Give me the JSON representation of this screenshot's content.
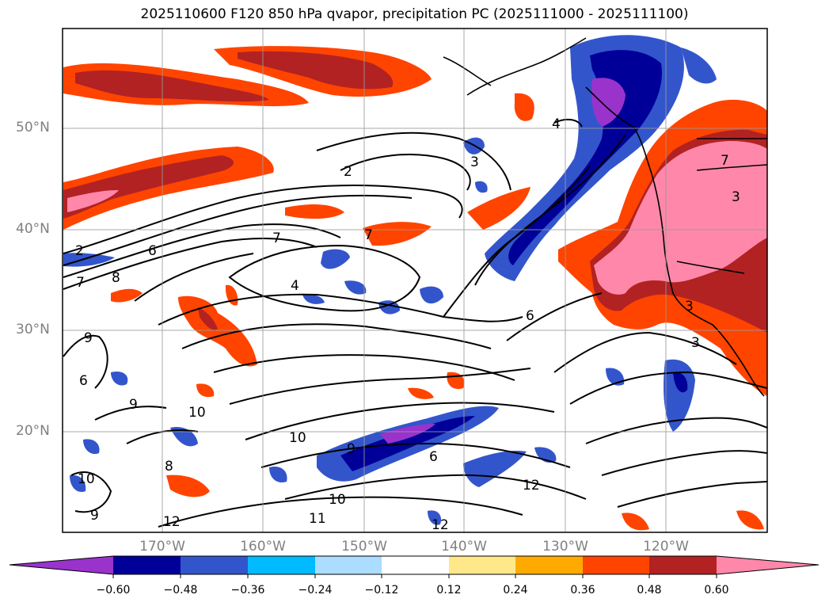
{
  "title": "2025110600 F120 850 hPa qvapor, precipitation PC (2025111000 - 2025111100)",
  "lat_labels": [
    "50°N",
    "40°N",
    "30°N",
    "20°N"
  ],
  "lon_labels": [
    "170°W",
    "160°W",
    "150°W",
    "140°W",
    "130°W",
    "120°W"
  ],
  "colorbar": {
    "ticks": [
      "−0.60",
      "−0.48",
      "−0.36",
      "−0.24",
      "−0.12",
      "0.12",
      "0.24",
      "0.36",
      "0.48",
      "0.60"
    ],
    "colors": [
      "#9933cc",
      "#000099",
      "#3355cc",
      "#00bbff",
      "#aaddff",
      "#ffffff",
      "#ffe88a",
      "#ffaa00",
      "#ff4400",
      "#b22222",
      "#ff88aa"
    ]
  },
  "contour_labels": [
    "2",
    "7",
    "8",
    "6",
    "7",
    "7",
    "4",
    "6",
    "3",
    "2",
    "4",
    "3",
    "3",
    "3",
    "9",
    "6",
    "9",
    "10",
    "10",
    "8",
    "9",
    "10",
    "10",
    "11",
    "12",
    "12",
    "6",
    "12",
    "9",
    "7"
  ]
}
